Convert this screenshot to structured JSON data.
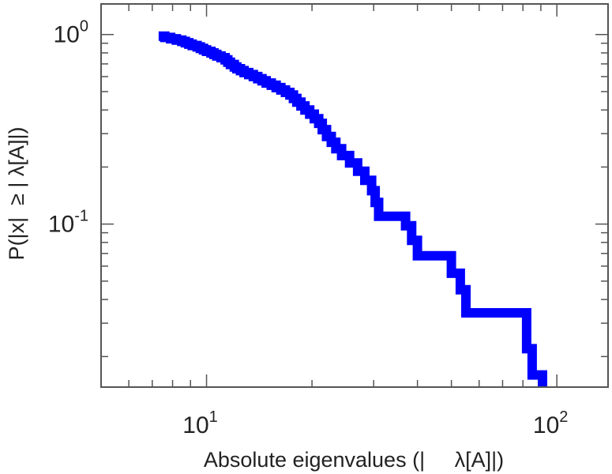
{
  "chart_data": {
    "type": "line",
    "step": true,
    "xscale": "log",
    "yscale": "log",
    "xlim": [
      5.0,
      140.0
    ],
    "ylim": [
      0.0138,
      1.45
    ],
    "xticks": [
      {
        "base": "10",
        "exp": "1",
        "value": 10
      },
      {
        "base": "10",
        "exp": "2",
        "value": 100
      }
    ],
    "yticks": [
      {
        "base": "10",
        "exp": "0",
        "value": 1
      },
      {
        "base": "10",
        "exp": "-1",
        "value": 0.1
      }
    ],
    "xlabel": "Absolute eigenvalues (|     λ[A]|)",
    "ylabel": "P(|x|  ≥ | λ[A]|)",
    "grid": false,
    "color": "#0000ff",
    "series": [
      {
        "name": "",
        "points": [
          [
            7.3,
            0.98
          ],
          [
            7.6,
            0.965
          ],
          [
            7.9,
            0.95
          ],
          [
            8.2,
            0.935
          ],
          [
            8.5,
            0.92
          ],
          [
            8.7,
            0.905
          ],
          [
            8.9,
            0.89
          ],
          [
            9.1,
            0.875
          ],
          [
            9.4,
            0.86
          ],
          [
            9.6,
            0.845
          ],
          [
            9.8,
            0.83
          ],
          [
            10.0,
            0.815
          ],
          [
            10.3,
            0.8
          ],
          [
            10.5,
            0.785
          ],
          [
            10.7,
            0.77
          ],
          [
            11.0,
            0.755
          ],
          [
            11.3,
            0.735
          ],
          [
            11.5,
            0.715
          ],
          [
            11.7,
            0.695
          ],
          [
            12.0,
            0.675
          ],
          [
            12.2,
            0.66
          ],
          [
            12.5,
            0.645
          ],
          [
            12.8,
            0.63
          ],
          [
            13.2,
            0.615
          ],
          [
            13.6,
            0.6
          ],
          [
            14.0,
            0.585
          ],
          [
            14.4,
            0.57
          ],
          [
            14.8,
            0.555
          ],
          [
            15.3,
            0.54
          ],
          [
            15.8,
            0.525
          ],
          [
            16.3,
            0.51
          ],
          [
            16.8,
            0.495
          ],
          [
            17.3,
            0.48
          ],
          [
            17.7,
            0.46
          ],
          [
            18.1,
            0.44
          ],
          [
            18.6,
            0.42
          ],
          [
            19.1,
            0.4
          ],
          [
            19.7,
            0.38
          ],
          [
            20.3,
            0.36
          ],
          [
            20.9,
            0.34
          ],
          [
            21.4,
            0.315
          ],
          [
            22.0,
            0.29
          ],
          [
            22.7,
            0.27
          ],
          [
            23.4,
            0.25
          ],
          [
            24.3,
            0.23
          ],
          [
            25.6,
            0.21
          ],
          [
            27.0,
            0.19
          ],
          [
            28.3,
            0.17
          ],
          [
            29.6,
            0.15
          ],
          [
            30.3,
            0.13
          ],
          [
            31.0,
            0.11
          ],
          [
            37.0,
            0.098
          ],
          [
            38.5,
            0.082
          ],
          [
            40.0,
            0.068
          ],
          [
            50.0,
            0.055
          ],
          [
            53.0,
            0.045
          ],
          [
            55.0,
            0.034
          ],
          [
            82.0,
            0.022
          ],
          [
            85.0,
            0.016
          ],
          [
            91.0,
            0.0138
          ]
        ]
      }
    ]
  }
}
